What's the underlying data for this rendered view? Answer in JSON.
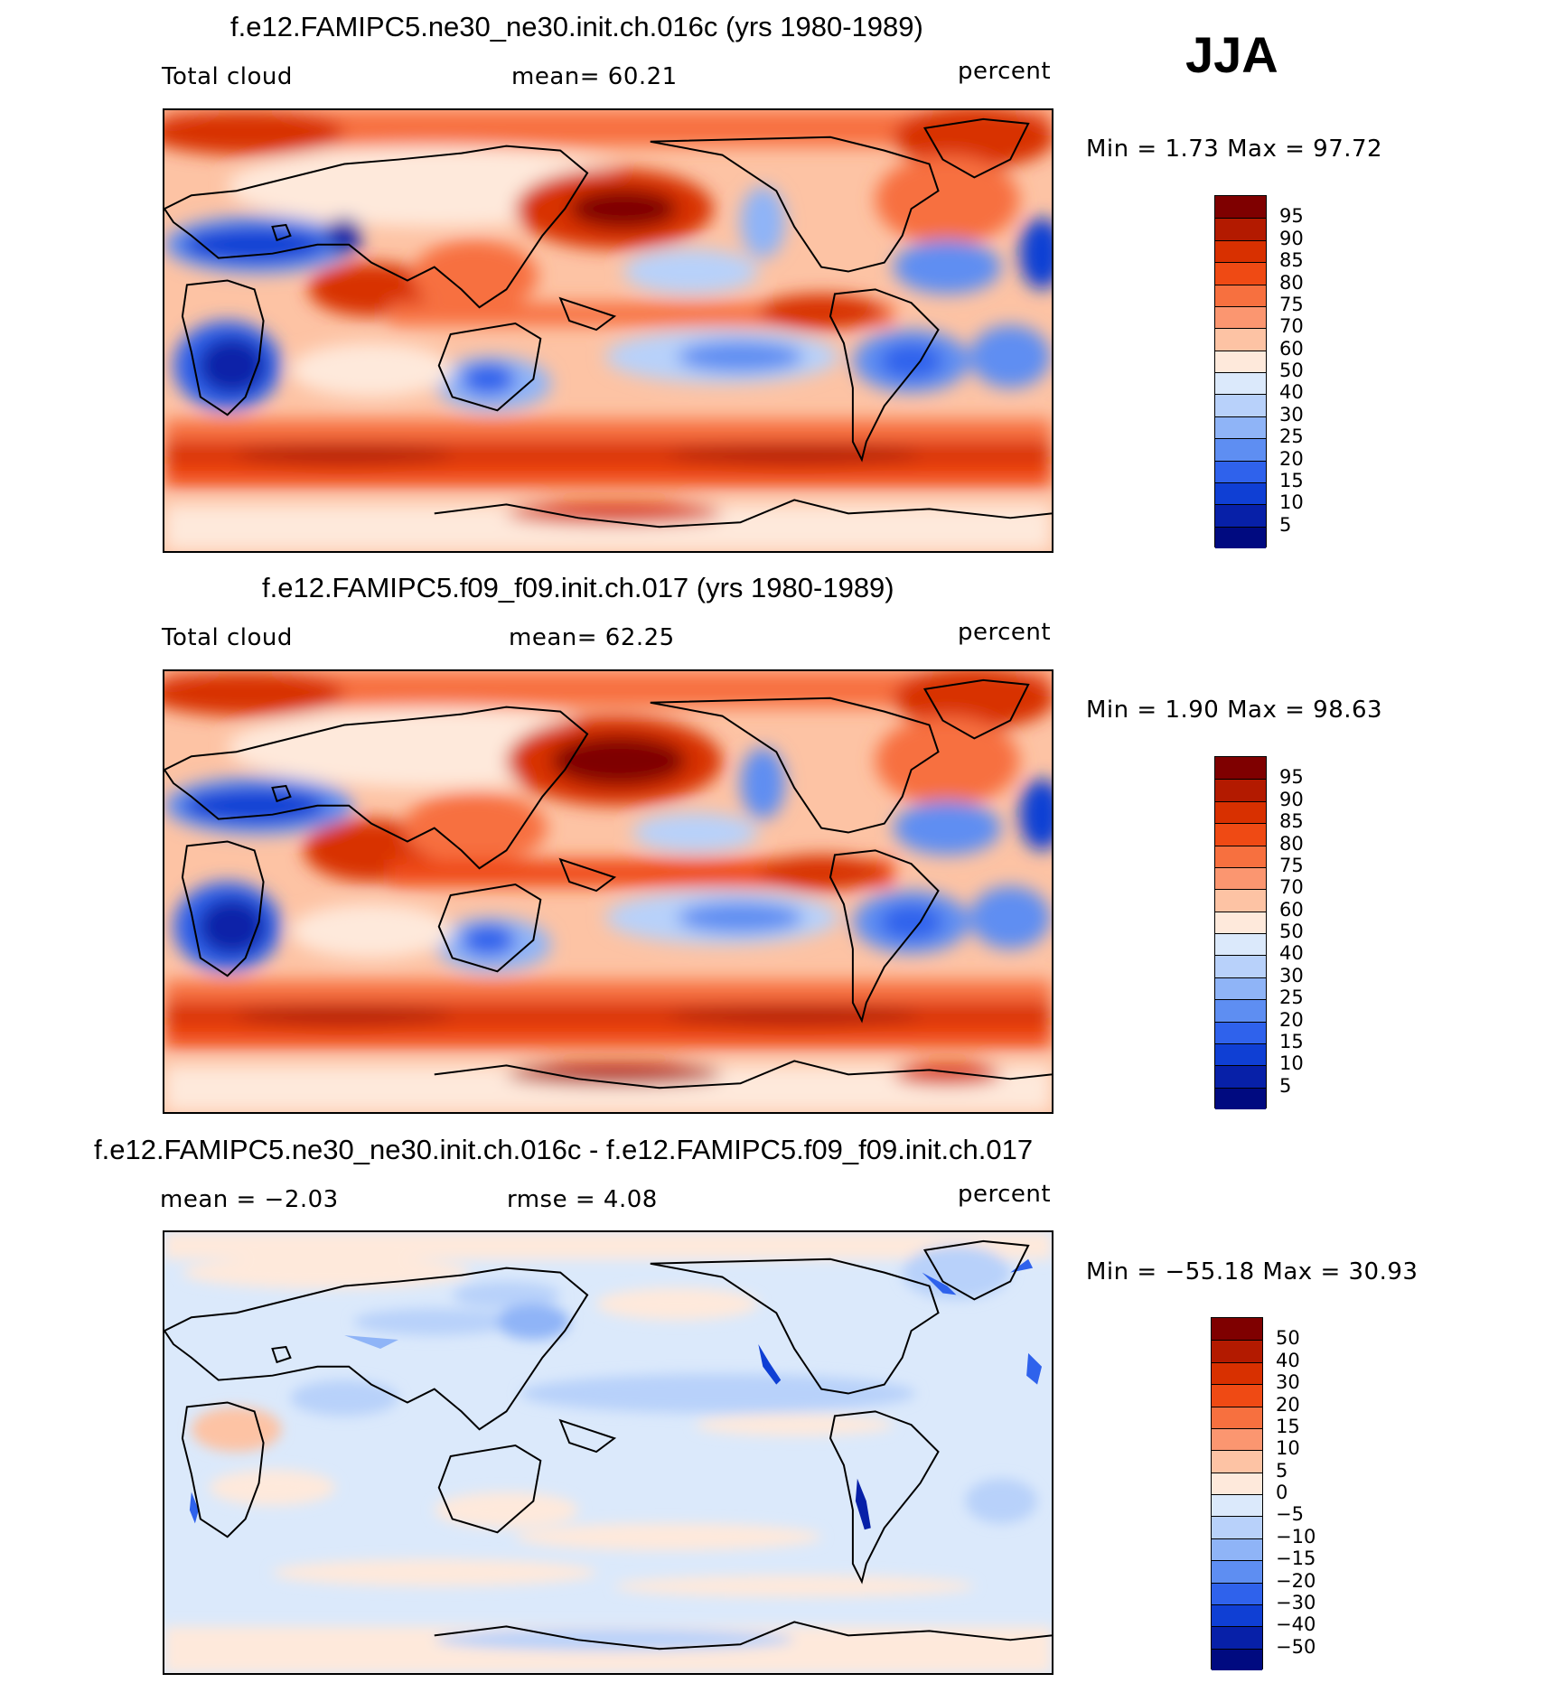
{
  "season": "JJA",
  "panels": [
    {
      "title": "f.e12.FAMIPC5.ne30_ne30.init.ch.016c (yrs 1980-1989)",
      "left_label": "Total cloud",
      "mid_label": "mean=   60.21",
      "units": "percent",
      "minmax": "Min =     1.73 Max =   97.72",
      "field_mean": 60.21,
      "field_min": 1.73,
      "field_max": 97.72
    },
    {
      "title": "f.e12.FAMIPC5.f09_f09.init.ch.017 (yrs 1980-1989)",
      "left_label": "Total cloud",
      "mid_label": "mean=   62.25",
      "units": "percent",
      "minmax": "Min =     1.90 Max =   98.63",
      "field_mean": 62.25,
      "field_min": 1.9,
      "field_max": 98.63
    },
    {
      "title": "f.e12.FAMIPC5.ne30_ne30.init.ch.016c - f.e12.FAMIPC5.f09_f09.init.ch.017",
      "left_label": "mean =   −2.03",
      "mid_label": "rmse =     4.08",
      "units": "percent",
      "minmax": "Min = −55.18 Max =   30.93",
      "field_mean": -2.03,
      "field_rmse": 4.08,
      "field_min": -55.18,
      "field_max": 30.93
    }
  ],
  "colorbar_abs": {
    "labels": [
      "95",
      "90",
      "85",
      "80",
      "75",
      "70",
      "60",
      "50",
      "40",
      "30",
      "25",
      "20",
      "15",
      "10",
      "5"
    ],
    "colors": [
      "#7f0000",
      "#b31a00",
      "#d83000",
      "#ef4a14",
      "#f7703f",
      "#fb9670",
      "#fdc3a4",
      "#fee9db",
      "#dbe9fb",
      "#b8d1fa",
      "#8fb4f7",
      "#5e8ef2",
      "#2f62ec",
      "#0f3fd4",
      "#0720a8",
      "#000a80"
    ]
  },
  "colorbar_diff": {
    "labels": [
      "50",
      "40",
      "30",
      "20",
      "15",
      "10",
      "5",
      "0",
      "−5",
      "−10",
      "−15",
      "−20",
      "−30",
      "−40",
      "−50"
    ],
    "colors": [
      "#7f0000",
      "#b31a00",
      "#d83000",
      "#ef4a14",
      "#f7703f",
      "#fb9670",
      "#fdc3a4",
      "#fee9db",
      "#dbe9fb",
      "#b8d1fa",
      "#8fb4f7",
      "#5e8ef2",
      "#2f62ec",
      "#0f3fd4",
      "#0720a8",
      "#000a80"
    ]
  },
  "chart_data": [
    {
      "type": "heatmap",
      "title": "f.e12.FAMIPC5.ne30_ne30.init.ch.016c (yrs 1980-1989)",
      "variable": "Total cloud",
      "units": "percent",
      "season": "JJA",
      "mean": 60.21,
      "min": 1.73,
      "max": 97.72,
      "contour_levels": [
        5,
        10,
        15,
        20,
        25,
        30,
        40,
        50,
        60,
        70,
        75,
        80,
        85,
        90,
        95
      ]
    },
    {
      "type": "heatmap",
      "title": "f.e12.FAMIPC5.f09_f09.init.ch.017 (yrs 1980-1989)",
      "variable": "Total cloud",
      "units": "percent",
      "season": "JJA",
      "mean": 62.25,
      "min": 1.9,
      "max": 98.63,
      "contour_levels": [
        5,
        10,
        15,
        20,
        25,
        30,
        40,
        50,
        60,
        70,
        75,
        80,
        85,
        90,
        95
      ]
    },
    {
      "type": "heatmap",
      "title": "f.e12.FAMIPC5.ne30_ne30.init.ch.016c - f.e12.FAMIPC5.f09_f09.init.ch.017",
      "units": "percent",
      "season": "JJA",
      "mean": -2.03,
      "rmse": 4.08,
      "min": -55.18,
      "max": 30.93,
      "contour_levels": [
        -50,
        -40,
        -30,
        -20,
        -15,
        -10,
        -5,
        0,
        5,
        10,
        15,
        20,
        30,
        40,
        50
      ]
    }
  ]
}
